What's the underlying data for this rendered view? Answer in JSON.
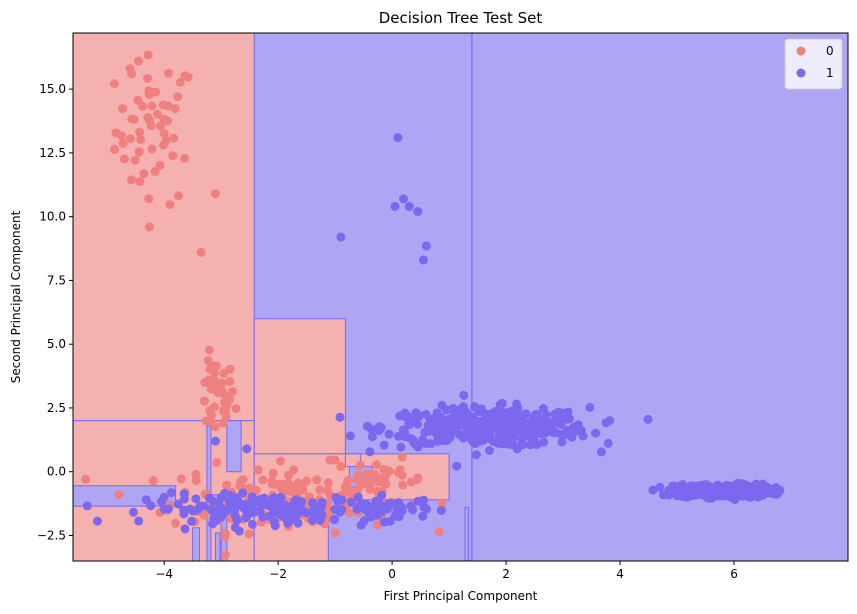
{
  "chart_data": {
    "type": "scatter",
    "title": "Decision Tree Test Set",
    "xlabel": "First Principal Component",
    "ylabel": "Second Principal Component",
    "xlim": [
      -5.6,
      8.0
    ],
    "ylim": [
      -3.5,
      17.2
    ],
    "x_ticks": [
      -4,
      -2,
      0,
      2,
      4,
      6
    ],
    "y_ticks": [
      -2.5,
      0.0,
      2.5,
      5.0,
      7.5,
      10.0,
      12.5,
      15.0
    ],
    "x_tick_labels": [
      "−4",
      "−2",
      "0",
      "2",
      "4",
      "6"
    ],
    "y_tick_labels": [
      "−2.5",
      "0.0",
      "2.5",
      "5.0",
      "7.5",
      "10.0",
      "12.5",
      "15.0"
    ],
    "grid": false,
    "legend_position": "top-right",
    "colors": {
      "class_0_point": "#f08080",
      "class_1_point": "#7b68ee",
      "class_0_region": "#f5b0b0",
      "class_1_region": "#aea5f4",
      "boundary": "#7b68ee"
    },
    "decision_regions": {
      "background_class": "1",
      "class_0_rects": [
        {
          "x": [
            -5.6,
            -2.42
          ],
          "y": [
            2.0,
            17.2
          ]
        },
        {
          "x": [
            -2.42,
            -0.82
          ],
          "y": [
            0.7,
            6.0
          ]
        },
        {
          "x": [
            -5.6,
            -2.42
          ],
          "y": [
            -3.5,
            2.0
          ]
        },
        {
          "x": [
            -2.42,
            1.0
          ],
          "y": [
            -1.1,
            0.7
          ]
        },
        {
          "x": [
            -0.82,
            -0.55
          ],
          "y": [
            0.2,
            0.7
          ]
        },
        {
          "x": [
            -2.42,
            -1.12
          ],
          "y": [
            -3.5,
            -1.1
          ]
        }
      ],
      "class_1_rects": [
        {
          "x": [
            -5.6,
            -3.8
          ],
          "y": [
            -1.35,
            -0.55
          ]
        },
        {
          "x": [
            -3.25,
            -3.18
          ],
          "y": [
            -3.5,
            1.8
          ]
        },
        {
          "x": [
            -2.9,
            -2.65
          ],
          "y": [
            0.0,
            2.0
          ]
        },
        {
          "x": [
            -3.0,
            -2.9
          ],
          "y": [
            -3.5,
            -1.2
          ]
        },
        {
          "x": [
            -3.5,
            -3.38
          ],
          "y": [
            -3.5,
            -2.2
          ]
        },
        {
          "x": [
            -3.1,
            -3.02
          ],
          "y": [
            -3.5,
            -2.4
          ]
        },
        {
          "x": [
            -3.18,
            -3.0
          ],
          "y": [
            -1.2,
            -0.9
          ]
        },
        {
          "x": [
            -0.75,
            -0.35
          ],
          "y": [
            -0.6,
            0.2
          ]
        },
        {
          "x": [
            1.28,
            1.34
          ],
          "y": [
            -3.5,
            -1.4
          ]
        }
      ],
      "vertical_boundary_x": 1.4
    },
    "series": [
      {
        "name": "0",
        "clusters": [
          {
            "cx": -4.15,
            "cy": 13.4,
            "sx": 0.35,
            "sy": 1.45,
            "n": 55
          },
          {
            "cx": -3.1,
            "cy": 2.9,
            "sx": 0.17,
            "sy": 0.75,
            "n": 40
          },
          {
            "cx": -1.9,
            "cy": -1.05,
            "sx": 1.0,
            "sy": 0.65,
            "n": 170
          },
          {
            "cx": -0.2,
            "cy": -0.3,
            "sx": 0.4,
            "sy": 0.4,
            "n": 30
          }
        ],
        "points": [
          [
            -3.35,
            8.6
          ],
          [
            -3.1,
            10.9
          ],
          [
            -4.45,
            16.1
          ],
          [
            -4.6,
            15.8
          ]
        ]
      },
      {
        "name": "1",
        "clusters": [
          {
            "cx": 1.65,
            "cy": 1.75,
            "sx": 0.9,
            "sy": 0.38,
            "n": 380
          },
          {
            "cx": 5.8,
            "cy": -0.75,
            "sx": 0.42,
            "sy": 0.13,
            "n": 280
          },
          {
            "cx": -2.2,
            "cy": -1.45,
            "sx": 1.05,
            "sy": 0.28,
            "n": 170
          },
          {
            "cx": -0.1,
            "cy": -1.45,
            "sx": 0.35,
            "sy": 0.22,
            "n": 45
          }
        ],
        "points": [
          [
            0.1,
            13.1
          ],
          [
            -0.9,
            9.2
          ],
          [
            0.2,
            10.7
          ],
          [
            0.3,
            10.4
          ],
          [
            0.45,
            10.2
          ],
          [
            0.05,
            10.4
          ],
          [
            0.6,
            8.85
          ],
          [
            0.55,
            8.3
          ],
          [
            -2.55,
            0.9
          ],
          [
            -3.1,
            1.2
          ]
        ]
      }
    ]
  }
}
